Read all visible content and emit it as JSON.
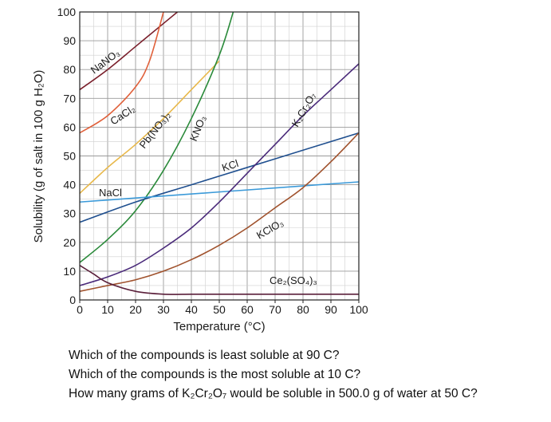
{
  "chart_data": {
    "type": "line",
    "title": "",
    "xlabel": "Temperature (°C)",
    "ylabel": "Solubility (g of salt in 100 g H₂O)",
    "xlim": [
      0,
      100
    ],
    "ylim": [
      0,
      100
    ],
    "x_ticks": [
      0,
      10,
      20,
      30,
      40,
      50,
      60,
      70,
      80,
      90,
      100
    ],
    "y_ticks": [
      0,
      10,
      20,
      30,
      40,
      50,
      60,
      70,
      80,
      90,
      100
    ],
    "grid": true,
    "series": [
      {
        "name": "NaNO₃",
        "color": "#7a1f2b",
        "x": [
          0,
          10,
          20,
          30,
          35
        ],
        "y": [
          73,
          80,
          88,
          96,
          100
        ]
      },
      {
        "name": "CaCl₂",
        "color": "#e0603a",
        "x": [
          0,
          10,
          20,
          25,
          30
        ],
        "y": [
          58,
          64,
          74,
          83,
          100
        ]
      },
      {
        "name": "Pb(NO₃)₂",
        "color": "#e8b84a",
        "x": [
          0,
          10,
          20,
          30,
          40,
          50
        ],
        "y": [
          37,
          46,
          54,
          63,
          73,
          83
        ]
      },
      {
        "name": "KNO₃",
        "color": "#2a8a3a",
        "x": [
          0,
          10,
          20,
          30,
          40,
          50,
          55
        ],
        "y": [
          13,
          21,
          31,
          45,
          63,
          85,
          100
        ]
      },
      {
        "name": "KCl",
        "color": "#1f4f8f",
        "x": [
          0,
          20,
          40,
          60,
          80,
          100
        ],
        "y": [
          27,
          34,
          40,
          46,
          52,
          58
        ]
      },
      {
        "name": "NaCl",
        "color": "#3b9ad9",
        "x": [
          0,
          100
        ],
        "y": [
          34,
          41
        ]
      },
      {
        "name": "K₂Cr₂O₇",
        "color": "#4a2a7a",
        "x": [
          0,
          10,
          20,
          30,
          40,
          50,
          60,
          70,
          80,
          90,
          100
        ],
        "y": [
          5,
          8,
          12,
          18,
          25,
          34,
          44,
          54,
          64,
          73,
          82
        ]
      },
      {
        "name": "KClO₃",
        "color": "#a0522d",
        "x": [
          0,
          10,
          20,
          30,
          40,
          50,
          60,
          70,
          80,
          90,
          100
        ],
        "y": [
          3,
          5,
          7,
          10,
          14,
          19,
          25,
          32,
          39,
          48,
          58
        ]
      },
      {
        "name": "Ce₂(SO₄)₃",
        "color": "#5a1f3a",
        "x": [
          0,
          5,
          10,
          20,
          30,
          40,
          50,
          60,
          70,
          80,
          90,
          100
        ],
        "y": [
          12,
          9,
          6,
          3,
          2,
          2,
          2,
          2,
          2,
          2,
          2,
          2
        ]
      }
    ],
    "labels": {
      "NaNO3": "NaNO₃",
      "CaCl2": "CaCl₂",
      "PbNO32": "Pb(NO₃)₂",
      "KNO3": "KNO₃",
      "KCl": "KCl",
      "NaCl": "NaCl",
      "K2Cr2O7": "K₂Cr₂O₇",
      "KClO3": "KClO₃",
      "Ce2SO43": "Ce₂(SO₄)₃"
    }
  },
  "questions": [
    "Which of the compounds is least soluble at 90 C?",
    "Which of the compounds is the most soluble at 10 C?",
    "How many grams of K₂Cr₂O₇ would be soluble in 500.0 g of water at 50 C?"
  ]
}
